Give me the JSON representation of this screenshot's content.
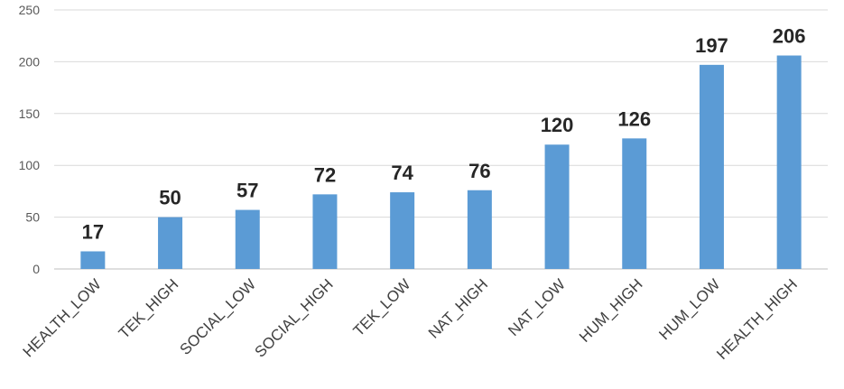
{
  "chart_data": {
    "type": "bar",
    "categories": [
      "HEALTH_LOW",
      "TEK_HIGH",
      "SOCIAL_LOW",
      "SOCIAL_HIGH",
      "TEK_LOW",
      "NAT_HIGH",
      "NAT_LOW",
      "HUM_HIGH",
      "HUM_LOW",
      "HEALTH_HIGH"
    ],
    "values": [
      17,
      50,
      57,
      72,
      74,
      76,
      120,
      126,
      197,
      206
    ],
    "title": "",
    "xlabel": "",
    "ylabel": "",
    "ylim": [
      0,
      250
    ],
    "yticks": [
      0,
      50,
      100,
      150,
      200,
      250
    ],
    "grid": true,
    "legend": "none",
    "bar_color": "#5b9bd5"
  }
}
